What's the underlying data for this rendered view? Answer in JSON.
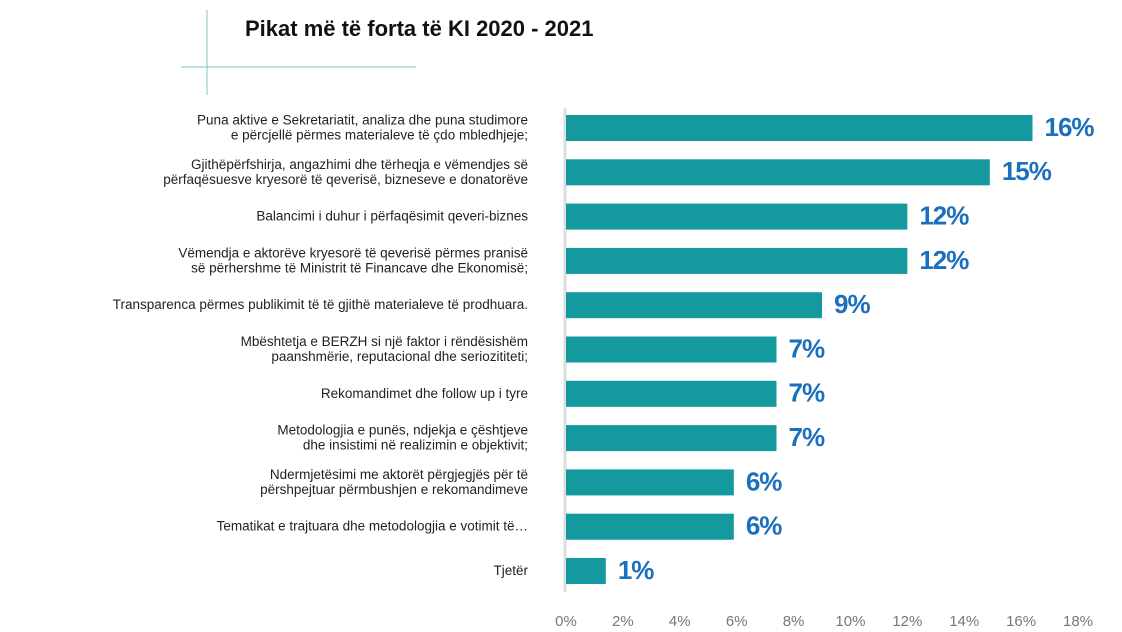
{
  "chart_data": {
    "type": "bar",
    "orientation": "horizontal",
    "title": "Pikat më të forta të KI 2020 - 2021",
    "categories": [
      [
        "Puna aktive e Sekretariatit, analiza dhe puna studimore",
        "e përcjellë përmes materialeve të çdo mbledhjeje;"
      ],
      [
        "Gjithëpërfshirja, angazhimi dhe tërheqja e vëmendjes së",
        "përfaqësuesve kryesorë të qeverisë, bizneseve e donatorëve"
      ],
      [
        "Balancimi i duhur i përfaqësimit qeveri-biznes"
      ],
      [
        "Vëmendja e aktorëve kryesorë të qeverisë përmes pranisë",
        "së përhershme të Ministrit të Financave dhe Ekonomisë;"
      ],
      [
        "Transparenca përmes publikimit të të gjithë materialeve të prodhuara."
      ],
      [
        "Mbështetja e BERZH si një faktor i rëndësishëm",
        "paanshmërie, reputacional dhe seriozititeti;"
      ],
      [
        "Rekomandimet dhe follow up i tyre"
      ],
      [
        "Metodologjia e punës, ndjekja e çështjeve",
        "dhe insistimi në realizimin e objektivit;"
      ],
      [
        "Ndermjetësimi me aktorët përgjegjës për të",
        "përshpejtuar përmbushjen e rekomandimeve"
      ],
      [
        "Tematikat e trajtuara dhe metodologjia e votimit të…"
      ],
      [
        "Tjetër"
      ]
    ],
    "values": [
      16.4,
      14.9,
      12,
      12,
      9,
      7.4,
      7.4,
      7.4,
      5.9,
      5.9,
      1.4
    ],
    "value_labels": [
      "16%",
      "15%",
      "12%",
      "12%",
      "9%",
      "7%",
      "7%",
      "7%",
      "6%",
      "6%",
      "1%"
    ],
    "color": "#13999e",
    "label_color": "#1b6fbf",
    "xlim": [
      0,
      18
    ],
    "xticks": [
      {
        "value": 0,
        "label": "0%"
      },
      {
        "value": 2,
        "label": "2%"
      },
      {
        "value": 4,
        "label": "4%"
      },
      {
        "value": 6,
        "label": "6%"
      },
      {
        "value": 8,
        "label": "8%"
      },
      {
        "value": 10,
        "label": "10%"
      },
      {
        "value": 12,
        "label": "12%"
      },
      {
        "value": 14,
        "label": "14%"
      },
      {
        "value": 16,
        "label": "16%"
      },
      {
        "value": 18,
        "label": "18%"
      }
    ]
  }
}
